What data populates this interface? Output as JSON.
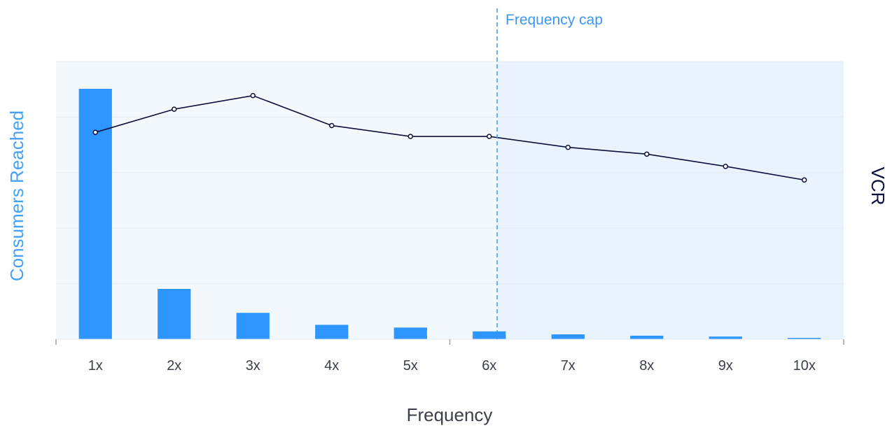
{
  "chart_data": {
    "type": "bar",
    "categories": [
      "1x",
      "2x",
      "3x",
      "4x",
      "5x",
      "6x",
      "7x",
      "8x",
      "9x",
      "10x"
    ],
    "series": [
      {
        "type": "bar",
        "axis": "left",
        "values": [
          92,
          18.5,
          9.7,
          5.3,
          4.3,
          2.9,
          1.8,
          1.3,
          1.0,
          0.5
        ]
      },
      {
        "type": "line",
        "axis": "right",
        "values": [
          76,
          84.5,
          89.5,
          78.5,
          74.5,
          74.5,
          70.5,
          68,
          63.5,
          58.5
        ]
      }
    ],
    "xlabel": "Frequency",
    "ylabel_left": "Consumers Reached",
    "ylabel_right": "VCR",
    "ylim_left": [
      0,
      102
    ],
    "ylim_right": [
      0,
      102
    ],
    "gridlines": 5,
    "annotation": {
      "label": "Frequency cap",
      "position": 5.6
    },
    "colors": {
      "bar": "#2d96ff",
      "line": "#0c0f3a",
      "cap": "#3a97f5",
      "plot_bg": "#f3f8fc",
      "capped_bg": "#e8f3fd",
      "grid": "#e6ebf0",
      "left_title": "#45a1f6",
      "right_title": "#0c0f3a"
    }
  }
}
